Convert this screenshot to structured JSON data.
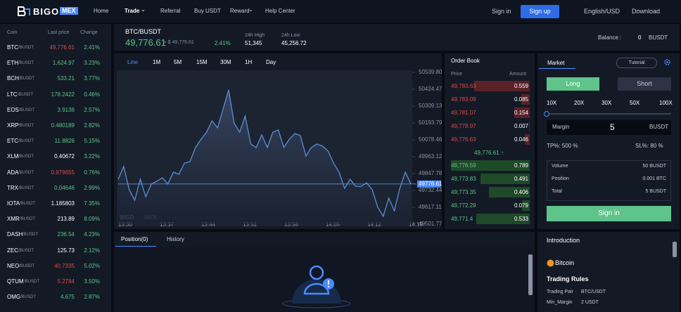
{
  "nav": {
    "logo": "BIGO",
    "logo_badge": "MEX",
    "items": [
      "Home",
      "Trade",
      "Referral",
      "Buy USDT",
      "Reward",
      "Help Center"
    ],
    "sign_in": "Sign in",
    "sign_up": "Sign up",
    "language": "English/USD",
    "download": "Download"
  },
  "coins": {
    "headers": [
      "Coin",
      "Last price",
      "Change"
    ],
    "quote": "/BUSDT",
    "rows": [
      {
        "coin": "BTC",
        "price": "49,776.61",
        "change": "2.41%",
        "color": "#e04848"
      },
      {
        "coin": "ETH",
        "price": "1,624.97",
        "change": "3.23%",
        "color": "#5ec48a"
      },
      {
        "coin": "BCH",
        "price": "533.21",
        "change": "3.77%",
        "color": "#5ec48a"
      },
      {
        "coin": "LTC",
        "price": "178.2422",
        "change": "0.46%",
        "color": "#5ec48a"
      },
      {
        "coin": "EOS",
        "price": "3.9136",
        "change": "2.57%",
        "color": "#5ec48a"
      },
      {
        "coin": "XRP",
        "price": "0.480189",
        "change": "2.82%",
        "color": "#5ec48a"
      },
      {
        "coin": "ETC",
        "price": "11.8826",
        "change": "5.15%",
        "color": "#5ec48a"
      },
      {
        "coin": "XLM",
        "price": "0.40672",
        "change": "3.22%",
        "color": "#ffffff"
      },
      {
        "coin": "ADA",
        "price": "0.979655",
        "change": "0.76%",
        "color": "#e04848"
      },
      {
        "coin": "TRX",
        "price": "0.04646",
        "change": "2.99%",
        "color": "#5ec48a"
      },
      {
        "coin": "IOTA",
        "price": "1.185803",
        "change": "7.35%",
        "color": "#ffffff"
      },
      {
        "coin": "XMR",
        "price": "213.89",
        "change": "8.09%",
        "color": "#ffffff"
      },
      {
        "coin": "DASH",
        "price": "236.54",
        "change": "4.23%",
        "color": "#5ec48a"
      },
      {
        "coin": "ZEC",
        "price": "125.73",
        "change": "2.12%",
        "color": "#ffffff"
      },
      {
        "coin": "NEO",
        "price": "40.7335",
        "change": "5.02%",
        "color": "#e04848"
      },
      {
        "coin": "QTUM",
        "price": "5.2784",
        "change": "3.50%",
        "color": "#e04848"
      },
      {
        "coin": "OMG",
        "price": "4.675",
        "change": "2.87%",
        "color": "#5ec48a"
      }
    ]
  },
  "ticker": {
    "pair": "BTC/BUSDT",
    "price": "49,776.61",
    "usd": "≈ $ 49,776.61",
    "change": "2.41%",
    "high_label": "24h High",
    "high": "51,345",
    "low_label": "24h Low",
    "low": "45,256.72",
    "balance_label": "Balance :",
    "balance": "0",
    "balance_unit": "BUSDT"
  },
  "chart_data": {
    "type": "line",
    "intervals": [
      "Line",
      "1M",
      "5M",
      "15M",
      "30M",
      "1H",
      "Day"
    ],
    "time_labels": [
      "13:30",
      "13:37",
      "13:44",
      "13:51",
      "13:58",
      "14:05",
      "14:12",
      "14:19"
    ],
    "values": [
      49809,
      49896,
      49737,
      49665,
      49809,
      49689,
      49776,
      49795,
      49819,
      49776,
      49857,
      49843,
      49920,
      49929,
      50026,
      50083,
      50131,
      50208,
      50160,
      50290,
      50420,
      50194,
      50131,
      50242,
      50050,
      50026,
      50112,
      50026,
      50131,
      50146,
      50026,
      50083,
      50122,
      50107,
      49968,
      50026,
      50050,
      50035,
      50002,
      49920,
      49857,
      49747,
      49809,
      49761,
      49761,
      49785,
      49737,
      49617,
      49555,
      49680,
      49593,
      49747,
      49857,
      49776.61
    ],
    "color": "#5b8fd6",
    "ylim": [
      49501.77,
      50539.8
    ],
    "yticks": [
      {
        "value": 50539.8,
        "label": "50539.80"
      },
      50424.47,
      50309.13,
      50193.79,
      50078.46,
      49963.12,
      49847.78,
      49732.44,
      49617.11,
      49501.77
    ],
    "last_price": 49776.61,
    "watermark": "BIGO",
    "watermark_badge": "MEX"
  },
  "order_book": {
    "title": "Order Book",
    "headers": [
      "Price",
      "Amount"
    ],
    "asks": [
      {
        "price": "49,783.63",
        "amount": 0.559
      },
      {
        "price": "49,783.09",
        "amount": 0.085
      },
      {
        "price": "49,781.07",
        "amount": 0.154
      },
      {
        "price": "49,778.97",
        "amount": 0.007
      },
      {
        "price": "49,776.63",
        "amount": 0.046
      }
    ],
    "mid": "49,776.61 ↑",
    "bids": [
      {
        "price": "49,776.59",
        "amount": 0.789
      },
      {
        "price": "49,773.83",
        "amount": 0.491
      },
      {
        "price": "49,773.35",
        "amount": 0.406
      },
      {
        "price": "49,772.29",
        "amount": 0.079
      },
      {
        "price": "49,771.4",
        "amount": 0.533
      }
    ]
  },
  "trade": {
    "tab": "Market",
    "tutorial": "Tutorial",
    "long": "Long",
    "short": "Short",
    "leverage": [
      "10X",
      "20X",
      "30X",
      "50X",
      "100X"
    ],
    "margin_label": "Margin",
    "margin": "5",
    "margin_unit": "BUSDT",
    "tp": "TP%: 500 %",
    "sl": "SL%: 80 %",
    "summary": [
      [
        "Volume",
        "50 BUSDT"
      ],
      [
        "Position",
        "0.001 BTC"
      ],
      [
        "Total",
        "5 BUSDT"
      ]
    ],
    "submit": "Sign in"
  },
  "positions": {
    "tabs": [
      "Position(0)",
      "History"
    ]
  },
  "intro": {
    "title": "Introduction",
    "coin": "Bitcoin",
    "rules_title": "Trading Rules",
    "rules": [
      [
        "Trading Pair",
        "BTC/USDT"
      ],
      [
        "Min_Margin",
        "2 USDT"
      ]
    ]
  }
}
